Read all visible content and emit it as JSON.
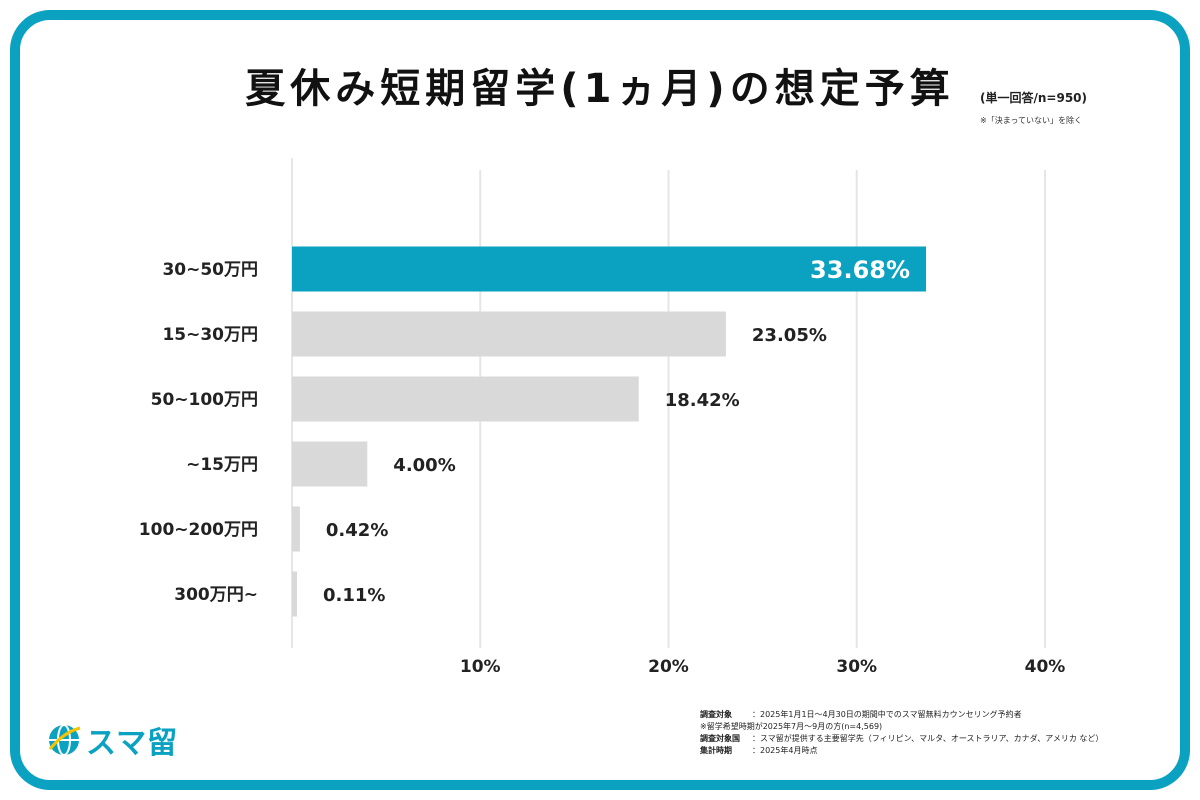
{
  "title": "夏休み短期留学(1ヵ月)の想定予算",
  "subtitle": "(単一回答/n=950)",
  "subtitle_note": "※「決まっていない」を除く",
  "chart_data": {
    "type": "bar",
    "orientation": "horizontal",
    "title": "夏休み短期留学(1ヵ月)の想定予算",
    "categories": [
      "30~50万円",
      "15~30万円",
      "50~100万円",
      "~15万円",
      "100~200万円",
      "300万円~"
    ],
    "values": [
      33.68,
      23.05,
      18.42,
      4.0,
      0.42,
      0.11
    ],
    "value_labels": [
      "33.68%",
      "23.05%",
      "18.42%",
      "4.00%",
      "0.42%",
      "0.11%"
    ],
    "xlim": [
      0,
      40
    ],
    "xticks": [
      10,
      20,
      30,
      40
    ],
    "xtick_labels": [
      "10%",
      "20%",
      "30%",
      "40%"
    ],
    "grid": true,
    "highlight_index": 0,
    "colors": {
      "highlight": "#0aa2c0",
      "bar": "#d9d9d9",
      "grid": "#e6e6e6"
    }
  },
  "footnotes": [
    {
      "label": "調査対象",
      "text": "：2025年1月1日～4月30日の期間中でのスマ留無料カウンセリング予約者"
    },
    {
      "label": "",
      "text": "※留学希望時期が2025年7月～9月の方(n=4,569)"
    },
    {
      "label": "調査対象国",
      "text": "：スマ留が提供する主要留学先（フィリピン、マルタ、オーストラリア、カナダ、アメリカ など）"
    },
    {
      "label": "集計時期",
      "text": "：2025年4月時点"
    }
  ],
  "logo": {
    "text": "スマ留",
    "icon": "globe-icon",
    "color": "#0aa2c0"
  },
  "frame_color": "#0aa2c0"
}
